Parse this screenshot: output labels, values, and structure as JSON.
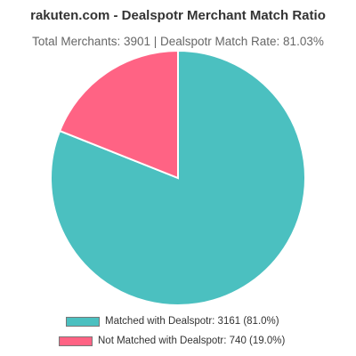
{
  "chart_data": {
    "type": "pie",
    "title": "rakuten.com - Dealspotr Merchant Match Ratio",
    "subtitle": "Total Merchants: 3901 | Dealspotr Match Rate: 81.03%",
    "categories": [
      "Matched with Dealspotr",
      "Not Matched with Dealspotr"
    ],
    "values": [
      3161,
      740
    ],
    "colors": [
      "#4bc0c0",
      "#ff6384"
    ],
    "legend": {
      "placement": "bottom",
      "entries": [
        "Matched with Dealspotr: 3161 (81.0%)",
        "Not Matched with Dealspotr: 740 (19.0%)"
      ]
    }
  }
}
